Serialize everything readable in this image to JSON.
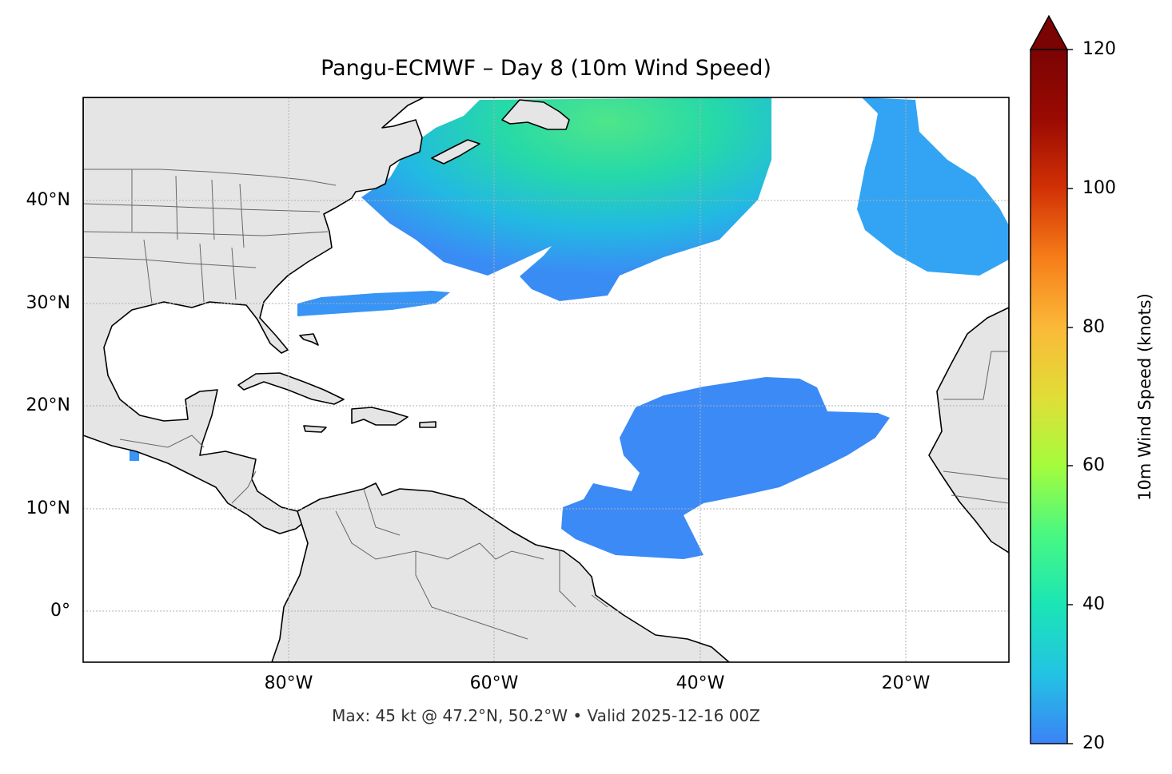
{
  "title": "Pangu-ECMWF – Day 8 (10m Wind Speed)",
  "footer": "Max: 45 kt @ 47.2°N, 50.2°W • Valid 2025-12-16 00Z",
  "map": {
    "extent": {
      "lon": [
        -100,
        -10
      ],
      "lat": [
        -5,
        50
      ]
    },
    "lat_ticks": [
      {
        "value": 40,
        "label": "40°N"
      },
      {
        "value": 30,
        "label": "30°N"
      },
      {
        "value": 20,
        "label": "20°N"
      },
      {
        "value": 10,
        "label": "10°N"
      },
      {
        "value": 0,
        "label": "0°"
      }
    ],
    "lon_ticks": [
      {
        "value": -80,
        "label": "80°W"
      },
      {
        "value": -60,
        "label": "60°W"
      },
      {
        "value": -40,
        "label": "40°W"
      },
      {
        "value": -20,
        "label": "20°W"
      }
    ],
    "gridlines": true,
    "land_color": "#e5e5e5",
    "coast_color": "#000000",
    "border_color": "#666666",
    "max_point": {
      "lat": 47.2,
      "lon": -50.2,
      "kt": 45
    }
  },
  "colorbar": {
    "label": "10m Wind Speed (knots)",
    "range": [
      20,
      120
    ],
    "ticks": [
      20,
      40,
      60,
      80,
      100,
      120
    ],
    "extend": "max",
    "colormap": "turbo",
    "stops": [
      "#3b83f7",
      "#23c3e3",
      "#1be5b5",
      "#47f882",
      "#a4fc3c",
      "#e1dd37",
      "#fbb938",
      "#f67d19",
      "#d23105",
      "#9a0a02",
      "#7a0403"
    ]
  }
}
